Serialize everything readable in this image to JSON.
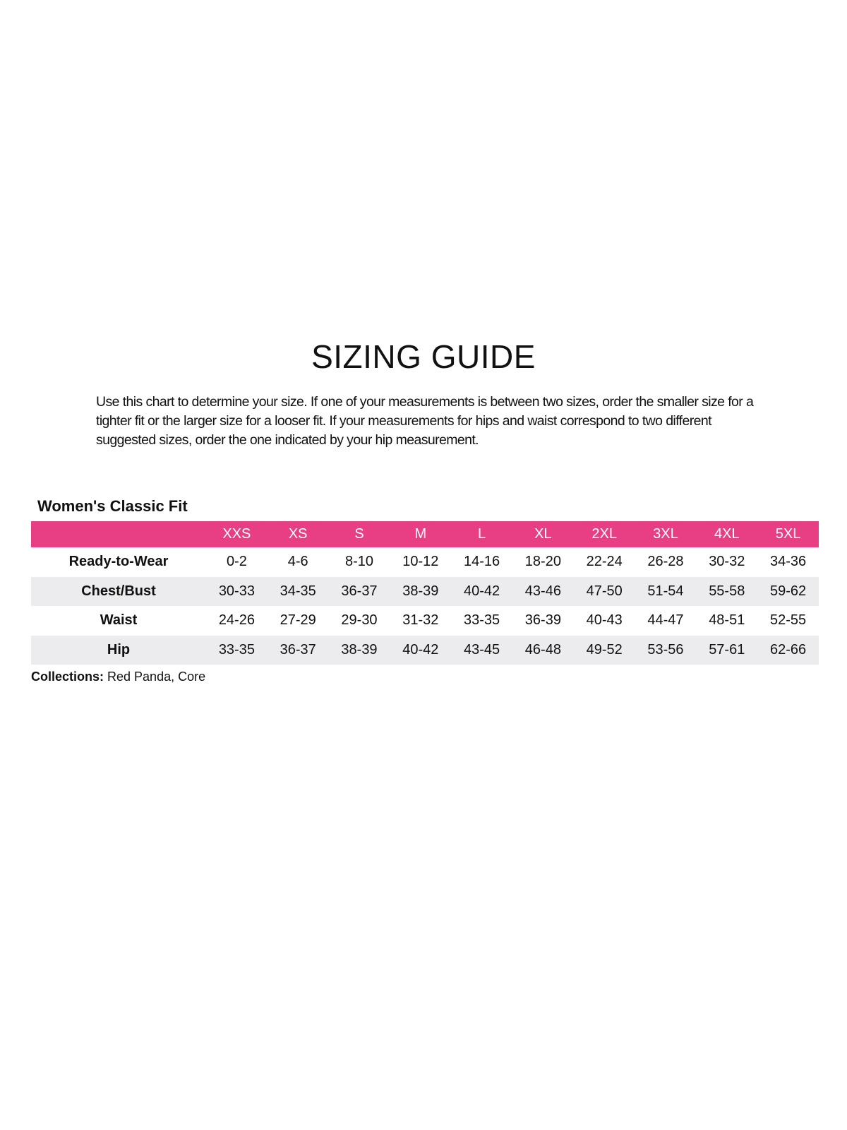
{
  "title": "SIZING GUIDE",
  "intro": "Use this chart to determine your size. If one of your measurements is between two sizes, order the smaller size for a tighter fit or the larger size for a looser fit. If your measurements for hips and waist correspond to two different suggested sizes, order the one indicated by your hip measurement.",
  "table": {
    "title": "Women's Classic Fit",
    "header_color": "#e83e84",
    "sizes": [
      "XXS",
      "XS",
      "S",
      "M",
      "L",
      "XL",
      "2XL",
      "3XL",
      "4XL",
      "5XL"
    ],
    "rows": [
      {
        "label": "Ready-to-Wear",
        "values": [
          "0-2",
          "4-6",
          "8-10",
          "10-12",
          "14-16",
          "18-20",
          "22-24",
          "26-28",
          "30-32",
          "34-36"
        ]
      },
      {
        "label": "Chest/Bust",
        "values": [
          "30-33",
          "34-35",
          "36-37",
          "38-39",
          "40-42",
          "43-46",
          "47-50",
          "51-54",
          "55-58",
          "59-62"
        ]
      },
      {
        "label": "Waist",
        "values": [
          "24-26",
          "27-29",
          "29-30",
          "31-32",
          "33-35",
          "36-39",
          "40-43",
          "44-47",
          "48-51",
          "52-55"
        ]
      },
      {
        "label": "Hip",
        "values": [
          "33-35",
          "36-37",
          "38-39",
          "40-42",
          "43-45",
          "46-48",
          "49-52",
          "53-56",
          "57-61",
          "62-66"
        ]
      }
    ]
  },
  "collections": {
    "label": "Collections:",
    "value": " Red Panda, Core"
  }
}
